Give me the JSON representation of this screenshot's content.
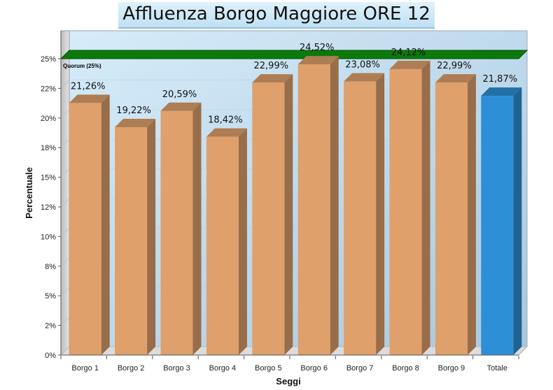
{
  "chart_data": {
    "type": "bar",
    "title": "Affluenza Borgo Maggiore ORE 12",
    "xlabel": "Seggi",
    "ylabel": "Percentuale",
    "categories": [
      "Borgo 1",
      "Borgo 2",
      "Borgo 3",
      "Borgo 4",
      "Borgo 5",
      "Borgo 6",
      "Borgo 7",
      "Borgo 8",
      "Borgo 9",
      "Totale"
    ],
    "values": [
      21.26,
      19.22,
      20.59,
      18.42,
      22.99,
      24.52,
      23.08,
      24.12,
      22.99,
      21.87
    ],
    "value_labels": [
      "21,26%",
      "19,22%",
      "20,59%",
      "18,42%",
      "22,99%",
      "24,52%",
      "23,08%",
      "24,12%",
      "22,99%",
      "21,87%"
    ],
    "ylim": [
      0,
      25
    ],
    "yticks": [
      0,
      2.5,
      5,
      7.5,
      10,
      12.5,
      15,
      17.5,
      20,
      22.5,
      25
    ],
    "ytick_labels": [
      "0%",
      "2%",
      "5%",
      "8%",
      "10%",
      "12%",
      "15%",
      "18%",
      "20%",
      "22%",
      "25%"
    ],
    "reference_line": {
      "value": 25,
      "label": "Quorum (25%)",
      "color": "#0b7a0b"
    },
    "colors": {
      "bar": "#dfa06c",
      "highlight_bar": "#2d90d6",
      "plot_bg_top": "#cfe6f6",
      "plot_bg_bottom": "#b2d0e6"
    },
    "highlight_category": "Totale",
    "grid": true
  }
}
